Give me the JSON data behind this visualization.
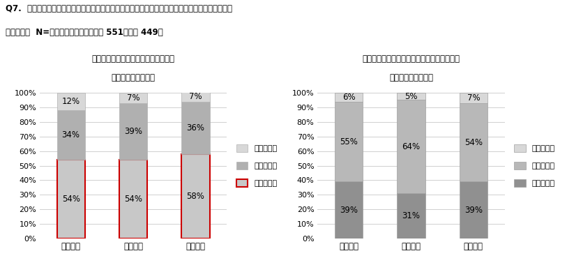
{
  "question_text": "Q7.  連休中の過ごし方について、平日との違いはありますか。当てはまるものをお選びください。",
  "subtitle_text": "（単一回答  N=連休明けの体調不良あり 551、なし 449）",
  "left_title1": "連休明けに体調不良を感じた回答者の",
  "left_title2": "連休中の生活リズム",
  "right_title1": "連休明けに体調不良を感じていない回答者の",
  "right_title2": "連休中の生活リズム",
  "categories": [
    "睡眠時間",
    "就寝時刻",
    "起床時刻"
  ],
  "legend_labels": [
    "短い・早い",
    "普段と同じ",
    "長い・遅い"
  ],
  "left_data": {
    "長い・遅い": [
      54,
      54,
      58
    ],
    "普段と同じ": [
      34,
      39,
      36
    ],
    "短い・早い": [
      12,
      7,
      7
    ]
  },
  "right_data": {
    "長い・遅い": [
      39,
      31,
      39
    ],
    "普段と同じ": [
      55,
      64,
      54
    ],
    "短い・早い": [
      6,
      5,
      7
    ]
  },
  "left_edge_color": "#cc0000",
  "bar_width": 0.45,
  "ylim": [
    0,
    100
  ],
  "yticks": [
    0,
    10,
    20,
    30,
    40,
    50,
    60,
    70,
    80,
    90,
    100
  ],
  "ytick_labels": [
    "0%",
    "10%",
    "20%",
    "30%",
    "40%",
    "50%",
    "60%",
    "70%",
    "80%",
    "90%",
    "100%"
  ]
}
